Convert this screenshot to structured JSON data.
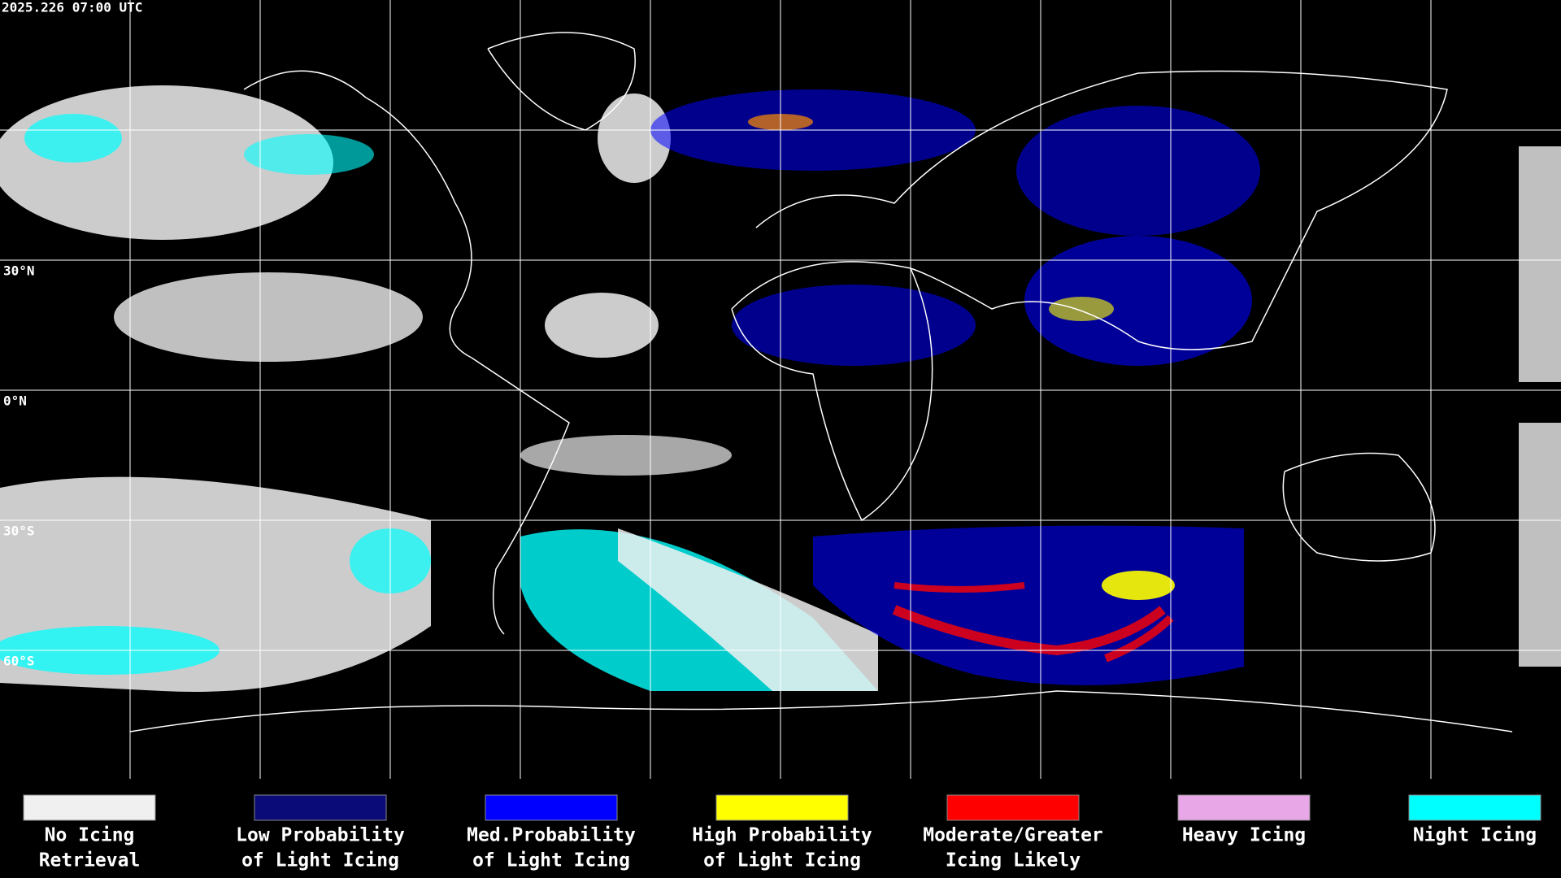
{
  "header": {
    "title": "2025.226 07:00 UTC"
  },
  "lat_labels": [
    "30°N",
    "0°N",
    "30°S",
    "60°S"
  ],
  "legend": [
    {
      "color": "#f0f0f0",
      "lines": [
        "No Icing",
        "Retrieval"
      ]
    },
    {
      "color": "#0a0a78",
      "lines": [
        "Low Probability",
        "of Light Icing"
      ]
    },
    {
      "color": "#0000ff",
      "lines": [
        "Med.Probability",
        "of Light Icing"
      ]
    },
    {
      "color": "#ffff00",
      "lines": [
        "High Probability",
        "of Light Icing"
      ]
    },
    {
      "color": "#ff0000",
      "lines": [
        "Moderate/Greater",
        "Icing Likely"
      ]
    },
    {
      "color": "#e8a8e8",
      "lines": [
        "Heavy Icing"
      ]
    },
    {
      "color": "#00ffff",
      "lines": [
        "Night Icing"
      ]
    }
  ]
}
